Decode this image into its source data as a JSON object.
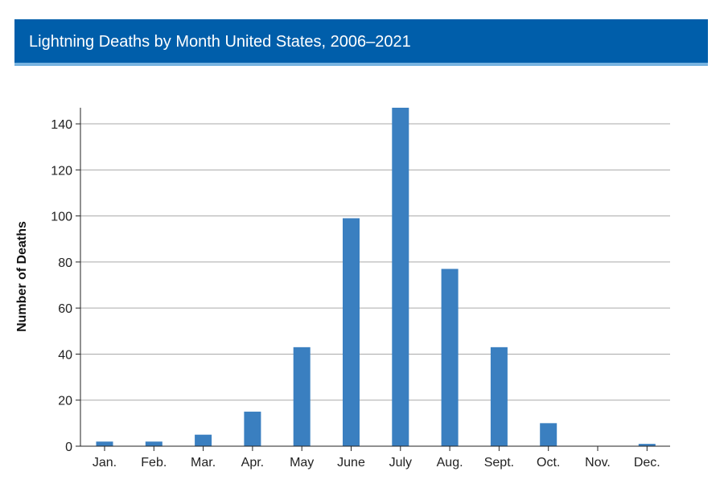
{
  "header": {
    "title": "Lightning Deaths by Month United States, 2006–2021"
  },
  "colors": {
    "header_bg": "#005eaa",
    "header_accent": "#77b3e0",
    "bar": "#3a7fc0",
    "grid": "#aaaaaa"
  },
  "chart_data": {
    "type": "bar",
    "categories": [
      "Jan.",
      "Feb.",
      "Mar.",
      "Apr.",
      "May",
      "June",
      "July",
      "Aug.",
      "Sept.",
      "Oct.",
      "Nov.",
      "Dec."
    ],
    "values": [
      2,
      2,
      5,
      15,
      43,
      99,
      147,
      77,
      43,
      10,
      0,
      1
    ],
    "title": "",
    "xlabel": "",
    "ylabel": "Number of Deaths",
    "ylim": [
      0,
      147
    ],
    "yticks": [
      0,
      20,
      40,
      60,
      80,
      100,
      120,
      140
    ],
    "grid": "horizontal",
    "legend": "none"
  }
}
